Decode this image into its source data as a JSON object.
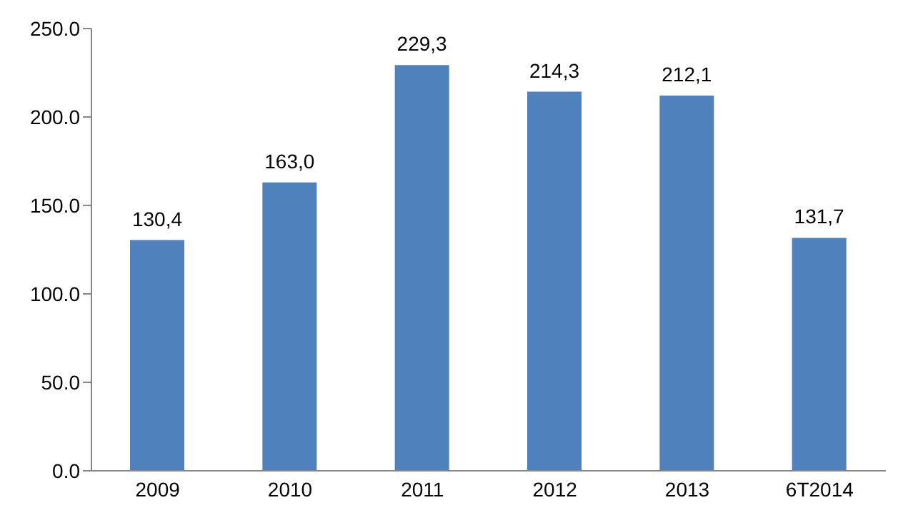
{
  "chart_data": {
    "type": "bar",
    "categories": [
      "2009",
      "2010",
      "2011",
      "2012",
      "2013",
      "6T2014"
    ],
    "values": [
      130.4,
      163.0,
      229.3,
      214.3,
      212.1,
      131.7
    ],
    "value_labels": [
      "130,4",
      "163,0",
      "229,3",
      "214,3",
      "212,1",
      "131,7"
    ],
    "color": "#4f81bd",
    "ylim": [
      0,
      250
    ],
    "yticks": [
      {
        "value": 0,
        "label": "0.0"
      },
      {
        "value": 50,
        "label": "50.0"
      },
      {
        "value": 100,
        "label": "100.0"
      },
      {
        "value": 150,
        "label": "150.0"
      },
      {
        "value": 200,
        "label": "200.0"
      },
      {
        "value": 250,
        "label": "250.0"
      }
    ],
    "grid": false,
    "legend": false
  }
}
